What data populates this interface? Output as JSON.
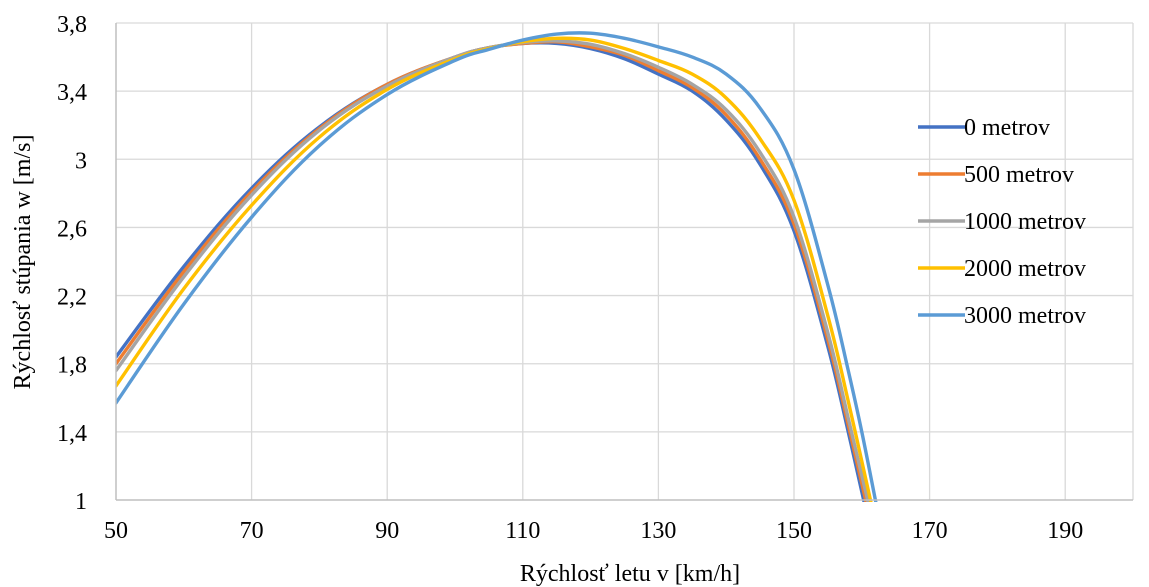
{
  "chart_data": {
    "type": "line",
    "title": "",
    "xlabel": "Rýchlosť letu v [km/h]",
    "ylabel": "Rýchlosť stúpania w [m/s]",
    "xlim": [
      50,
      200
    ],
    "ylim": [
      1,
      3.8
    ],
    "x_ticks": [
      "50",
      "70",
      "90",
      "110",
      "130",
      "150",
      "170",
      "190"
    ],
    "x_tick_values": [
      50,
      70,
      90,
      110,
      130,
      150,
      170,
      190
    ],
    "y_ticks": [
      "1",
      "1,4",
      "1,8",
      "2,2",
      "2,6",
      "3",
      "3,4",
      "3,8"
    ],
    "y_tick_values": [
      1,
      1.4,
      1.8,
      2.2,
      2.6,
      3,
      3.4,
      3.8
    ],
    "grid": true,
    "legend_position": "right",
    "series": [
      {
        "name": "0 metrov",
        "color": "#4472c4",
        "x": [
          50,
          60,
          70,
          80,
          90,
          100,
          105,
          110,
          115,
          120,
          125,
          130,
          135,
          140,
          145,
          150,
          155,
          158,
          160.5
        ],
        "y": [
          1.84,
          2.37,
          2.83,
          3.19,
          3.44,
          3.6,
          3.655,
          3.68,
          3.68,
          3.65,
          3.59,
          3.5,
          3.4,
          3.23,
          2.97,
          2.58,
          1.9,
          1.4,
          0.96
        ]
      },
      {
        "name": "500 metrov",
        "color": "#ed7d31",
        "x": [
          50,
          60,
          70,
          80,
          90,
          100,
          105,
          110,
          115,
          120,
          125,
          130,
          135,
          140,
          145,
          150,
          155,
          158,
          160.8
        ],
        "y": [
          1.8,
          2.34,
          2.81,
          3.18,
          3.44,
          3.6,
          3.655,
          3.68,
          3.69,
          3.66,
          3.61,
          3.52,
          3.42,
          3.26,
          3.0,
          2.62,
          1.94,
          1.44,
          0.96
        ]
      },
      {
        "name": "1000 metrov",
        "color": "#a5a5a5",
        "x": [
          50,
          60,
          70,
          80,
          90,
          100,
          105,
          110,
          115,
          120,
          125,
          130,
          135,
          140,
          145,
          150,
          155,
          158,
          161.1
        ],
        "y": [
          1.76,
          2.31,
          2.79,
          3.17,
          3.43,
          3.6,
          3.655,
          3.685,
          3.695,
          3.675,
          3.62,
          3.54,
          3.44,
          3.29,
          3.04,
          2.66,
          1.98,
          1.48,
          0.96
        ]
      },
      {
        "name": "2000 metrov",
        "color": "#ffc000",
        "x": [
          50,
          60,
          70,
          80,
          90,
          100,
          105,
          110,
          115,
          120,
          125,
          130,
          135,
          140,
          145,
          150,
          155,
          158,
          161.5
        ],
        "y": [
          1.67,
          2.24,
          2.73,
          3.13,
          3.41,
          3.59,
          3.65,
          3.69,
          3.71,
          3.7,
          3.65,
          3.58,
          3.5,
          3.36,
          3.12,
          2.76,
          2.08,
          1.58,
          0.96
        ]
      },
      {
        "name": "3000 metrov",
        "color": "#5b9bd5",
        "x": [
          50,
          60,
          70,
          80,
          90,
          100,
          105,
          110,
          115,
          120,
          125,
          130,
          135,
          140,
          145,
          150,
          155,
          158,
          160,
          162.2
        ],
        "y": [
          1.57,
          2.15,
          2.66,
          3.08,
          3.38,
          3.58,
          3.645,
          3.7,
          3.735,
          3.74,
          3.71,
          3.66,
          3.6,
          3.5,
          3.3,
          2.94,
          2.26,
          1.76,
          1.4,
          0.96
        ]
      }
    ]
  }
}
